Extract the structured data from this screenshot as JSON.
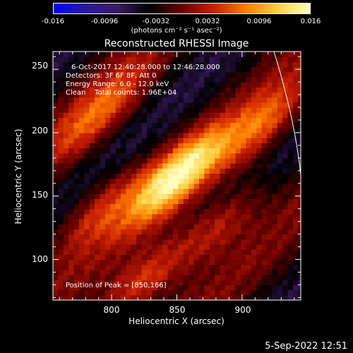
{
  "colorbar": {
    "ticks": [
      "-0.016",
      "-0.0096",
      "-0.0032",
      "0.0032",
      "0.0096",
      "0.016"
    ],
    "unit_label": "(photons cm⁻² s⁻¹ asec⁻²)",
    "colors": [
      "#0000ff",
      "#2a1a9a",
      "#3a1a5e",
      "#000000",
      "#6a0000",
      "#c82000",
      "#ff7a00",
      "#ffd040",
      "#ffffc0"
    ]
  },
  "chart_data": {
    "type": "heatmap",
    "title": "Reconstructed RHESSI Image",
    "xlabel": "Heliocentric X (arcsec)",
    "ylabel": "Heliocentric Y (arcsec)",
    "xlim": [
      755,
      945
    ],
    "ylim": [
      68,
      264
    ],
    "xticks": [
      800,
      850,
      900
    ],
    "yticks": [
      100,
      150,
      200,
      250
    ],
    "peak": [
      850,
      166
    ],
    "info_lines": [
      "6-Oct-2017 12:40:28.000 to 12:46:28.000",
      "Detectors: 3F 6F 8F, Att 0",
      "Energy Range: 6.0 - 12.0 keV",
      "Clean    Total counts: 1.96E+04"
    ],
    "peak_label": "Position of Peak = [850,166]",
    "sources": [
      {
        "x": 850,
        "y": 166,
        "intensity": 1.0
      },
      {
        "x": 822,
        "y": 82,
        "intensity": 0.62
      },
      {
        "x": 915,
        "y": 205,
        "intensity": 0.55
      },
      {
        "x": 880,
        "y": 125,
        "intensity": 0.5
      },
      {
        "x": 790,
        "y": 215,
        "intensity": 0.5
      },
      {
        "x": 790,
        "y": 140,
        "intensity": 0.45
      }
    ]
  },
  "timestamp": "5-Sep-2022 12:51"
}
